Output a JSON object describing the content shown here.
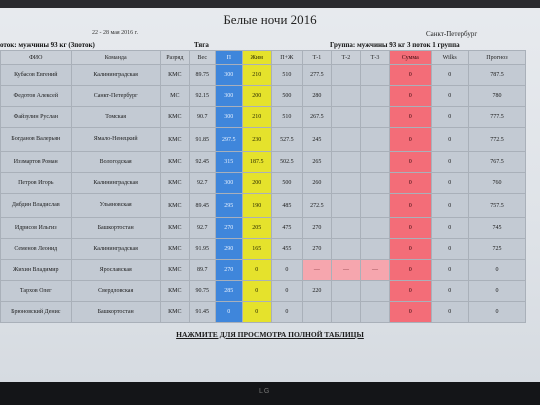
{
  "header": {
    "title": "Белые ночи 2016",
    "dates": "22 - 28 мая 2016 г.",
    "city": "Санкт-Петербург",
    "flow_left": "оток: мужчины 93 кг (3поток)",
    "flow_mid": "Тяга",
    "flow_right": "Группа: мужчины 93 кг 3 поток 1 группа"
  },
  "table": {
    "columns": [
      "ФИО",
      "Команда",
      "Разряд",
      "Вес",
      "П",
      "Жим",
      "П+Ж",
      "Т-1",
      "Т-2",
      "Т-3",
      "Сумма",
      "Wilks",
      "Прогноз"
    ],
    "rows": [
      [
        "Кубасов Евгений",
        "Калининградская",
        "КМС",
        "89.75",
        "300",
        "210",
        "510",
        "277.5",
        "",
        "",
        "0",
        "0",
        "787.5"
      ],
      [
        "Федотов Алексей",
        "Санкт-Петербург",
        "МС",
        "92.15",
        "300",
        "200",
        "500",
        "280",
        "",
        "",
        "0",
        "0",
        "780"
      ],
      [
        "Файзулин Руслан",
        "Томская",
        "КМС",
        "90.7",
        "300",
        "210",
        "510",
        "267.5",
        "",
        "",
        "0",
        "0",
        "777.5"
      ],
      [
        "Богданов Валерьян",
        "Ямало-Ненецкий",
        "КМС",
        "91.85",
        "297.5",
        "230",
        "527.5",
        "245",
        "",
        "",
        "0",
        "0",
        "772.5"
      ],
      [
        "Иззмартов Роман",
        "Вологодская",
        "КМС",
        "92.45",
        "315",
        "187.5",
        "502.5",
        "265",
        "",
        "",
        "0",
        "0",
        "767.5"
      ],
      [
        "Петров Игорь",
        "Калининградская",
        "КМС",
        "92.7",
        "300",
        "200",
        "500",
        "260",
        "",
        "",
        "0",
        "0",
        "760"
      ],
      [
        "Дябдин Владислав",
        "Ульяновская",
        "КМС",
        "89.45",
        "295",
        "190",
        "485",
        "272.5",
        "",
        "",
        "0",
        "0",
        "757.5"
      ],
      [
        "Идрисов Ильгиз",
        "Башкортостан",
        "КМС",
        "92.7",
        "270",
        "205",
        "475",
        "270",
        "",
        "",
        "0",
        "0",
        "745"
      ],
      [
        "Семенов Леонид",
        "Калининградская",
        "КМС",
        "91.95",
        "290",
        "165",
        "455",
        "270",
        "",
        "",
        "0",
        "0",
        "725"
      ],
      [
        "Жихин Владимир",
        "Ярославская",
        "КМС",
        "89.7",
        "270",
        "0",
        "0",
        "—",
        "—",
        "—",
        "0",
        "0",
        "0"
      ],
      [
        "Тархов Олег",
        "Свердловская",
        "КМС",
        "90.75",
        "285",
        "0",
        "0",
        "220",
        "",
        "",
        "0",
        "0",
        "0"
      ],
      [
        "Брюновский Денис",
        "Башкортостан",
        "КМС",
        "91.45",
        "0",
        "0",
        "0",
        "",
        "",
        "",
        "0",
        "0",
        "0"
      ]
    ]
  },
  "footer": {
    "link_label": "НАЖМИТЕ ДЛЯ ПРОСМОТРА ПОЛНОЙ ТАБЛИЦЫ",
    "brand": "LG"
  },
  "colors": {
    "squat_column": "#3f86db",
    "bench_column": "#e5e22c",
    "total_column": "#f36d78"
  }
}
